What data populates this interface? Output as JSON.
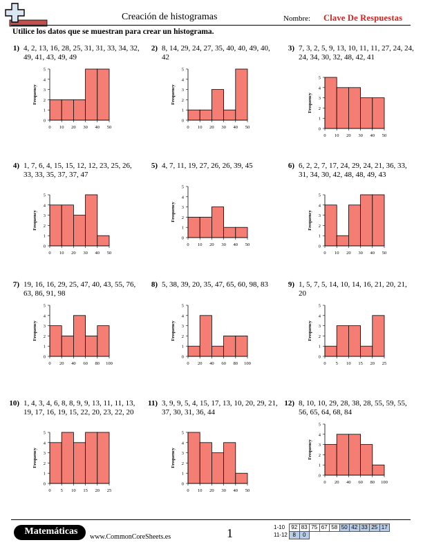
{
  "header": {
    "title": "Creación de histogramas",
    "name_label": "Nombre:",
    "answer_key": "Clave De Respuestas",
    "logo_icon": "plus-logo-icon"
  },
  "instructions": "Utilice los datos que se muestran para crear un histograma.",
  "colors": {
    "bar": "#f47d74",
    "answer": "#d8201c",
    "score_highlight": "#b9cde8"
  },
  "problems": [
    {
      "number": "1)",
      "data": "4, 2, 13, 16, 28, 25, 31, 31, 33, 34, 32, 49, 41, 43, 49, 49",
      "chart_data": {
        "type": "bar",
        "ylabel": "Frequency",
        "xticks": [
          "0",
          "10",
          "20",
          "30",
          "40",
          "50"
        ],
        "yticks": [
          "0",
          "1",
          "2",
          "3",
          "4",
          "5"
        ],
        "values": [
          2,
          2,
          2,
          5,
          5
        ]
      }
    },
    {
      "number": "2)",
      "data": "8, 14, 29, 24, 27, 35, 40, 40, 49, 40, 42",
      "chart_data": {
        "type": "bar",
        "ylabel": "Frequency",
        "xticks": [
          "0",
          "10",
          "20",
          "30",
          "40",
          "50"
        ],
        "yticks": [
          "0",
          "1",
          "2",
          "3",
          "4",
          "5"
        ],
        "values": [
          1,
          1,
          3,
          1,
          5
        ]
      }
    },
    {
      "number": "3)",
      "data": "7, 3, 2, 5, 9, 13, 10, 11, 11, 27, 24, 24, 24, 34, 30, 32, 48, 42, 41",
      "chart_data": {
        "type": "bar",
        "ylabel": "Frequency",
        "xticks": [
          "0",
          "10",
          "20",
          "30",
          "40",
          "50"
        ],
        "yticks": [
          "0",
          "1",
          "2",
          "3",
          "4",
          "5"
        ],
        "values": [
          5,
          4,
          4,
          3,
          3
        ]
      }
    },
    {
      "number": "4)",
      "data": "1, 7, 6, 4, 15, 15, 12, 12, 23, 25, 26, 33, 33, 35, 37, 37, 47",
      "chart_data": {
        "type": "bar",
        "ylabel": "Frequency",
        "xticks": [
          "0",
          "10",
          "20",
          "30",
          "40",
          "50"
        ],
        "yticks": [
          "0",
          "1",
          "2",
          "3",
          "4",
          "5"
        ],
        "values": [
          4,
          4,
          3,
          5,
          1
        ]
      }
    },
    {
      "number": "5)",
      "data": "4, 7, 11, 19, 27, 26, 26, 39, 45",
      "chart_data": {
        "type": "bar",
        "ylabel": "Frequency",
        "xticks": [
          "0",
          "10",
          "20",
          "30",
          "40",
          "50"
        ],
        "yticks": [
          "0",
          "1",
          "2",
          "3",
          "4",
          "5"
        ],
        "values": [
          2,
          2,
          3,
          1,
          1
        ]
      }
    },
    {
      "number": "6)",
      "data": "6, 2, 2, 7, 17, 24, 29, 24, 21, 36, 33, 31, 34, 30, 42, 48, 48, 49, 43",
      "chart_data": {
        "type": "bar",
        "ylabel": "Frequency",
        "xticks": [
          "0",
          "10",
          "20",
          "30",
          "40",
          "50"
        ],
        "yticks": [
          "0",
          "1",
          "2",
          "3",
          "4",
          "5"
        ],
        "values": [
          4,
          1,
          4,
          5,
          5
        ]
      }
    },
    {
      "number": "7)",
      "data": "19, 16, 16, 29, 25, 47, 40, 43, 55, 76, 63, 86, 91, 98",
      "chart_data": {
        "type": "bar",
        "ylabel": "Frequency",
        "xticks": [
          "0",
          "20",
          "40",
          "60",
          "80",
          "100"
        ],
        "yticks": [
          "0",
          "1",
          "2",
          "3",
          "4",
          "5"
        ],
        "values": [
          3,
          2,
          4,
          2,
          3
        ]
      }
    },
    {
      "number": "8)",
      "data": "5, 38, 39, 20, 35, 47, 65, 60, 98, 83",
      "chart_data": {
        "type": "bar",
        "ylabel": "Frequency",
        "xticks": [
          "0",
          "20",
          "40",
          "60",
          "80",
          "100"
        ],
        "yticks": [
          "0",
          "1",
          "2",
          "3",
          "4",
          "5"
        ],
        "values": [
          1,
          4,
          1,
          2,
          2
        ]
      }
    },
    {
      "number": "9)",
      "data": "1, 5, 7, 5, 14, 10, 14, 16, 21, 20, 21, 20",
      "chart_data": {
        "type": "bar",
        "ylabel": "Frequency",
        "xticks": [
          "0",
          "5",
          "10",
          "15",
          "20",
          "25"
        ],
        "yticks": [
          "0",
          "1",
          "2",
          "3",
          "4",
          "5"
        ],
        "values": [
          1,
          3,
          3,
          1,
          4
        ]
      }
    },
    {
      "number": "10)",
      "data": "1, 4, 3, 4, 6, 8, 8, 9, 9, 13, 11, 11, 13, 19, 17, 16, 19, 15, 22, 20, 23, 22, 20",
      "chart_data": {
        "type": "bar",
        "ylabel": "Frequency",
        "xticks": [
          "0",
          "5",
          "10",
          "15",
          "20",
          "25"
        ],
        "yticks": [
          "0",
          "1",
          "2",
          "3",
          "4",
          "5"
        ],
        "values": [
          4,
          5,
          4,
          5,
          5
        ]
      }
    },
    {
      "number": "11)",
      "data": "3, 9, 9, 5, 4, 15, 17, 13, 10, 20, 29, 21, 37, 30, 31, 36, 44",
      "chart_data": {
        "type": "bar",
        "ylabel": "Frequency",
        "xticks": [
          "0",
          "10",
          "20",
          "30",
          "40",
          "50"
        ],
        "yticks": [
          "0",
          "1",
          "2",
          "3",
          "4",
          "5"
        ],
        "values": [
          5,
          4,
          3,
          4,
          1
        ]
      }
    },
    {
      "number": "12)",
      "data": "8, 10, 10, 29, 28, 38, 28, 55, 59, 55, 56, 65, 64, 68, 84",
      "chart_data": {
        "type": "bar",
        "ylabel": "Frequency",
        "xticks": [
          "0",
          "20",
          "40",
          "60",
          "80",
          "100"
        ],
        "yticks": [
          "0",
          "1",
          "2",
          "3",
          "4",
          "5"
        ],
        "values": [
          3,
          4,
          4,
          3,
          1
        ]
      }
    }
  ],
  "footer": {
    "brand": "Matemáticas",
    "site": "www.CommonCoreSheets.es",
    "page": "1",
    "score_rows": [
      {
        "label": "1-10",
        "cells": [
          "92",
          "83",
          "75",
          "67",
          "58",
          "50",
          "42",
          "33",
          "25",
          "17"
        ]
      },
      {
        "label": "11-12",
        "cells": [
          "8",
          "0"
        ]
      }
    ]
  }
}
